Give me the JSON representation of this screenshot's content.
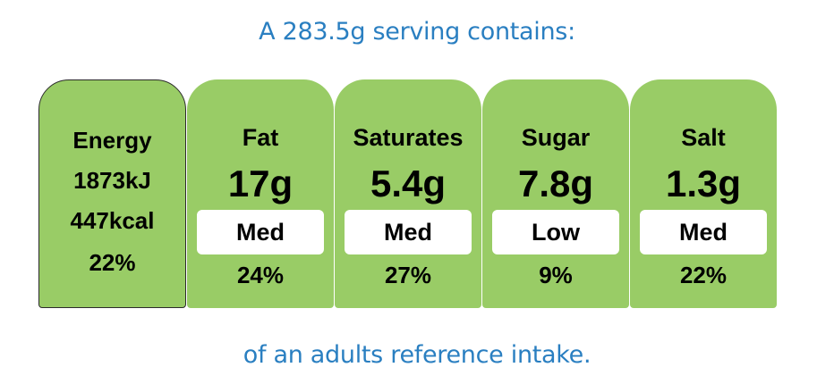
{
  "header": "A 283.5g serving contains:",
  "footer": "of an adults reference intake.",
  "colors": {
    "card_fill": "#99cc66",
    "heading_text": "#2a7fc1",
    "energy_border": "#2b2b2b"
  },
  "energy": {
    "label": "Energy",
    "kj": "1873kJ",
    "kcal": "447kcal",
    "percent": "22%"
  },
  "nutrients": [
    {
      "name": "Fat",
      "amount": "17g",
      "level": "Med",
      "percent": "24%"
    },
    {
      "name": "Saturates",
      "amount": "5.4g",
      "level": "Med",
      "percent": "27%"
    },
    {
      "name": "Sugar",
      "amount": "7.8g",
      "level": "Low",
      "percent": "9%"
    },
    {
      "name": "Salt",
      "amount": "1.3g",
      "level": "Med",
      "percent": "22%"
    }
  ]
}
